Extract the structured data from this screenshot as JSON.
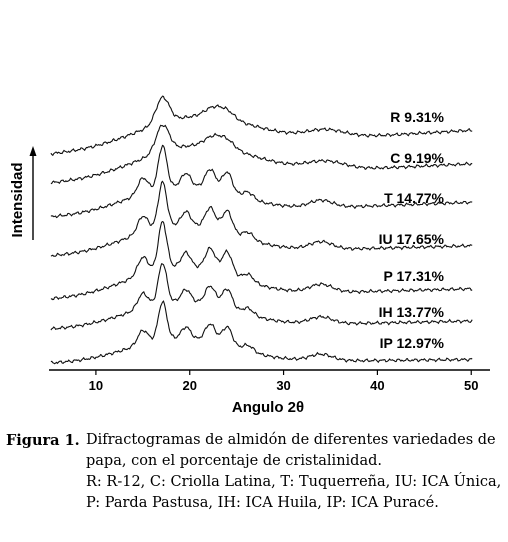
{
  "chart_data": {
    "type": "line",
    "xlabel": "Angulo 2θ",
    "ylabel": "Intensidad",
    "xlim": [
      5,
      52
    ],
    "x_ticks": [
      10,
      20,
      30,
      40,
      50
    ],
    "y_ticks_shown": false,
    "series": [
      {
        "name": "R 9.31%"
      },
      {
        "name": "C 9.19%"
      },
      {
        "name": "T 14.77%"
      },
      {
        "name": "IU 17.65%"
      },
      {
        "name": "P 17.31%"
      },
      {
        "name": "IH 13.77%"
      },
      {
        "name": "IP 12.97%"
      }
    ]
  },
  "caption": {
    "label": "Figura 1.",
    "line1": "Difractogramas de almidón de diferentes variedades de papa, con el porcentaje de cristalinidad.",
    "line2": "R: R-12, C: Criolla Latina, T: Tuquerreña, IU: ICA Única, P: Parda Pastusa, IH: ICA Huila, IP: ICA Puracé."
  }
}
